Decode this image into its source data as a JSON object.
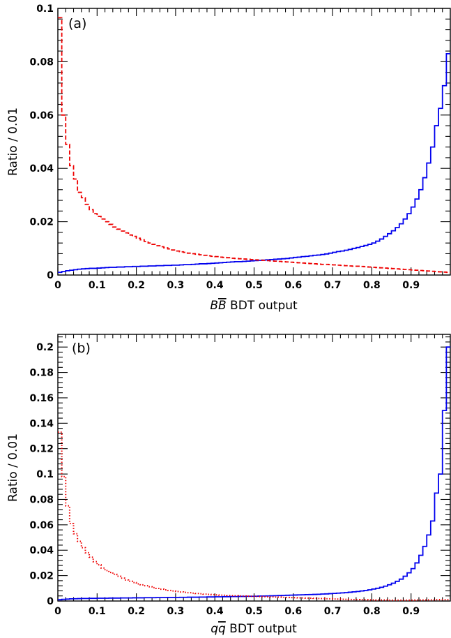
{
  "chart_data": [
    {
      "type": "line",
      "panel_label": "(a)",
      "xlabel_prefix": "B",
      "xlabel_bar": "B",
      "xlabel_suffix": " BDT output",
      "ylabel": "Ratio / 0.01",
      "xlim": [
        0,
        1
      ],
      "ylim": [
        0,
        0.1
      ],
      "x_ticks": [
        0,
        0.1,
        0.2,
        0.3,
        0.4,
        0.5,
        0.6,
        0.7,
        0.8,
        0.9
      ],
      "x_tick_labels": [
        "0",
        "0.1",
        "0.2",
        "0.3",
        "0.4",
        "0.5",
        "0.6",
        "0.7",
        "0.8",
        "0.9"
      ],
      "y_ticks": [
        0,
        0.02,
        0.04,
        0.06,
        0.08,
        0.1
      ],
      "y_tick_labels": [
        "0",
        "0.02",
        "0.04",
        "0.06",
        "0.08",
        "0.1"
      ],
      "grid": false,
      "bin_width": 0.01,
      "series": [
        {
          "color": "#0000ee",
          "dash": "solid",
          "step_values": [
            0.001,
            0.0013,
            0.0016,
            0.0018,
            0.002,
            0.0022,
            0.0023,
            0.0024,
            0.0025,
            0.0025,
            0.0026,
            0.0027,
            0.0028,
            0.0029,
            0.0029,
            0.003,
            0.003,
            0.0031,
            0.0031,
            0.0032,
            0.0032,
            0.0033,
            0.0033,
            0.0034,
            0.0034,
            0.0035,
            0.0035,
            0.0036,
            0.0036,
            0.0037,
            0.0037,
            0.0038,
            0.0039,
            0.0039,
            0.004,
            0.0041,
            0.0042,
            0.0042,
            0.0043,
            0.0044,
            0.0045,
            0.0046,
            0.0047,
            0.0048,
            0.0049,
            0.005,
            0.005,
            0.0051,
            0.0052,
            0.0053,
            0.0054,
            0.0055,
            0.0056,
            0.0057,
            0.0058,
            0.0059,
            0.006,
            0.0061,
            0.0062,
            0.0064,
            0.0066,
            0.0067,
            0.0069,
            0.007,
            0.0072,
            0.0074,
            0.0075,
            0.0077,
            0.0079,
            0.0082,
            0.0085,
            0.0088,
            0.009,
            0.0093,
            0.0096,
            0.01,
            0.0103,
            0.0107,
            0.0111,
            0.0115,
            0.012,
            0.0127,
            0.0135,
            0.0145,
            0.0155,
            0.0166,
            0.0178,
            0.0192,
            0.021,
            0.023,
            0.0255,
            0.0285,
            0.032,
            0.0365,
            0.042,
            0.048,
            0.056,
            0.0625,
            0.071,
            0.083
          ]
        },
        {
          "color": "#ee0000",
          "dash": "dashed",
          "step_values": [
            0.0965,
            0.06,
            0.049,
            0.041,
            0.036,
            0.031,
            0.029,
            0.0265,
            0.0245,
            0.023,
            0.022,
            0.021,
            0.02,
            0.019,
            0.018,
            0.0172,
            0.0165,
            0.0158,
            0.015,
            0.0145,
            0.0138,
            0.0132,
            0.0126,
            0.012,
            0.0115,
            0.011,
            0.0106,
            0.0102,
            0.0098,
            0.0094,
            0.009,
            0.0087,
            0.0085,
            0.0082,
            0.008,
            0.0078,
            0.0076,
            0.0074,
            0.0072,
            0.007,
            0.0069,
            0.0067,
            0.0066,
            0.0065,
            0.0063,
            0.0062,
            0.0061,
            0.006,
            0.0059,
            0.0058,
            0.0057,
            0.0056,
            0.0055,
            0.0054,
            0.0053,
            0.0052,
            0.0051,
            0.005,
            0.0049,
            0.0048,
            0.0047,
            0.0046,
            0.0045,
            0.0044,
            0.0043,
            0.0042,
            0.0041,
            0.004,
            0.004,
            0.0039,
            0.0038,
            0.0037,
            0.0036,
            0.0035,
            0.0034,
            0.0033,
            0.0033,
            0.0032,
            0.0031,
            0.003,
            0.0029,
            0.0028,
            0.0027,
            0.0026,
            0.0025,
            0.0024,
            0.0023,
            0.0022,
            0.0021,
            0.002,
            0.0019,
            0.0018,
            0.0017,
            0.0016,
            0.0015,
            0.0014,
            0.0013,
            0.0012,
            0.0011,
            0.001
          ]
        }
      ]
    },
    {
      "type": "line",
      "panel_label": "(b)",
      "xlabel_prefix": "q",
      "xlabel_bar": "q",
      "xlabel_suffix": " BDT output",
      "ylabel": "Ratio / 0.01",
      "xlim": [
        0,
        1
      ],
      "ylim": [
        0,
        0.21
      ],
      "x_ticks": [
        0,
        0.1,
        0.2,
        0.3,
        0.4,
        0.5,
        0.6,
        0.7,
        0.8,
        0.9
      ],
      "x_tick_labels": [
        "0",
        "0.1",
        "0.2",
        "0.3",
        "0.4",
        "0.5",
        "0.6",
        "0.7",
        "0.8",
        "0.9"
      ],
      "y_ticks": [
        0,
        0.02,
        0.04,
        0.06,
        0.08,
        0.1,
        0.12,
        0.14,
        0.16,
        0.18,
        0.2
      ],
      "y_tick_labels": [
        "0",
        "0.02",
        "0.04",
        "0.06",
        "0.08",
        "0.1",
        "0.12",
        "0.14",
        "0.16",
        "0.18",
        "0.2"
      ],
      "grid": false,
      "bin_width": 0.01,
      "series": [
        {
          "color": "#0000ee",
          "dash": "solid",
          "step_values": [
            0.001,
            0.0013,
            0.0015,
            0.0017,
            0.0018,
            0.0019,
            0.002,
            0.002,
            0.0021,
            0.0021,
            0.0022,
            0.0022,
            0.0022,
            0.0023,
            0.0023,
            0.0023,
            0.0024,
            0.0024,
            0.0024,
            0.0025,
            0.0025,
            0.0025,
            0.0026,
            0.0026,
            0.0026,
            0.0027,
            0.0027,
            0.0027,
            0.0028,
            0.0028,
            0.0028,
            0.0029,
            0.0029,
            0.003,
            0.003,
            0.003,
            0.0031,
            0.0031,
            0.0032,
            0.0032,
            0.0033,
            0.0033,
            0.0034,
            0.0034,
            0.0035,
            0.0035,
            0.0036,
            0.0036,
            0.0037,
            0.0037,
            0.0038,
            0.0039,
            0.0039,
            0.004,
            0.0041,
            0.0042,
            0.0043,
            0.0044,
            0.0045,
            0.0046,
            0.0047,
            0.0048,
            0.0049,
            0.005,
            0.0051,
            0.0052,
            0.0053,
            0.0055,
            0.0056,
            0.0058,
            0.006,
            0.0062,
            0.0064,
            0.0066,
            0.0069,
            0.0072,
            0.0075,
            0.0079,
            0.0083,
            0.0088,
            0.0094,
            0.01,
            0.0108,
            0.0117,
            0.0128,
            0.014,
            0.0155,
            0.0172,
            0.0195,
            0.0222,
            0.0255,
            0.03,
            0.036,
            0.043,
            0.052,
            0.063,
            0.085,
            0.1,
            0.15,
            0.2
          ]
        },
        {
          "color": "#ee0000",
          "dash": "dotted",
          "step_values": [
            0.133,
            0.098,
            0.075,
            0.061,
            0.053,
            0.047,
            0.042,
            0.038,
            0.0345,
            0.031,
            0.0285,
            0.026,
            0.024,
            0.0225,
            0.021,
            0.0195,
            0.018,
            0.0165,
            0.0155,
            0.0145,
            0.0135,
            0.0127,
            0.012,
            0.0112,
            0.0105,
            0.0099,
            0.0093,
            0.0088,
            0.0083,
            0.0079,
            0.0075,
            0.0071,
            0.0068,
            0.0065,
            0.0062,
            0.0059,
            0.0057,
            0.0054,
            0.0052,
            0.005,
            0.0048,
            0.0046,
            0.0045,
            0.0043,
            0.0042,
            0.0041,
            0.004,
            0.0039,
            0.0038,
            0.0037,
            0.0036,
            0.0035,
            0.0034,
            0.0033,
            0.0032,
            0.0031,
            0.003,
            0.0029,
            0.0028,
            0.0027,
            0.0026,
            0.0025,
            0.0024,
            0.0023,
            0.0022,
            0.0021,
            0.002,
            0.0019,
            0.0018,
            0.0017,
            0.0016,
            0.0015,
            0.0014,
            0.0013,
            0.0012,
            0.0011,
            0.0011,
            0.001,
            0.001,
            0.0009,
            0.0009,
            0.0008,
            0.0008,
            0.0008,
            0.0007,
            0.0007,
            0.0007,
            0.0007,
            0.0007,
            0.0007,
            0.0007,
            0.0008,
            0.0008,
            0.0008,
            0.0009,
            0.0009,
            0.001,
            0.001,
            0.001,
            0.001
          ]
        }
      ]
    }
  ]
}
